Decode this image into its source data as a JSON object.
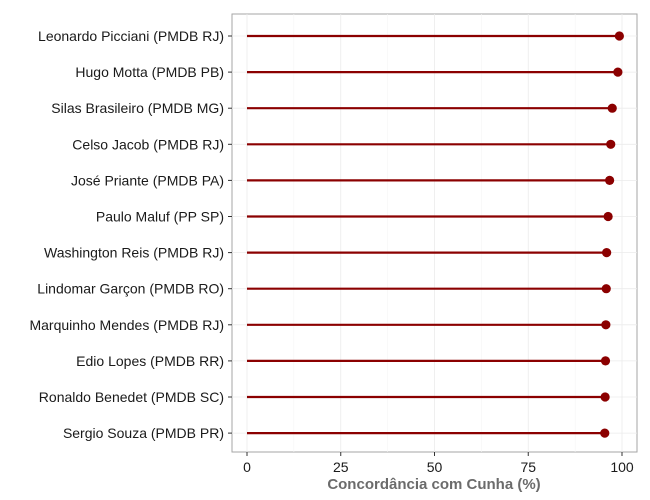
{
  "chart_data": {
    "type": "lollipop",
    "title": "",
    "xlabel": "Concordância com Cunha (%)",
    "ylabel": "",
    "xlim": [
      -4,
      104
    ],
    "xticks": [
      0,
      25,
      50,
      75,
      100
    ],
    "grid": true,
    "legend": "none",
    "colors": {
      "mark": "#8b0000",
      "panel_border": "#a6a6a6",
      "grid_major": "#ebebeb",
      "grid_minor": "#f5f5f5",
      "tick": "#333333"
    },
    "categories": [
      "Leonardo Picciani (PMDB RJ)",
      "Hugo Motta (PMDB PB)",
      "Silas Brasileiro (PMDB MG)",
      "Celso Jacob (PMDB RJ)",
      "José Priante (PMDB PA)",
      "Paulo Maluf (PP SP)",
      "Washington Reis (PMDB RJ)",
      "Lindomar Garçon (PMDB RO)",
      "Marquinho Mendes (PMDB RJ)",
      "Edio Lopes (PMDB RR)",
      "Ronaldo Benedet (PMDB SC)",
      "Sergio Souza (PMDB PR)"
    ],
    "values": [
      99.3,
      98.9,
      97.4,
      97.0,
      96.7,
      96.3,
      95.9,
      95.8,
      95.7,
      95.6,
      95.5,
      95.4
    ]
  }
}
